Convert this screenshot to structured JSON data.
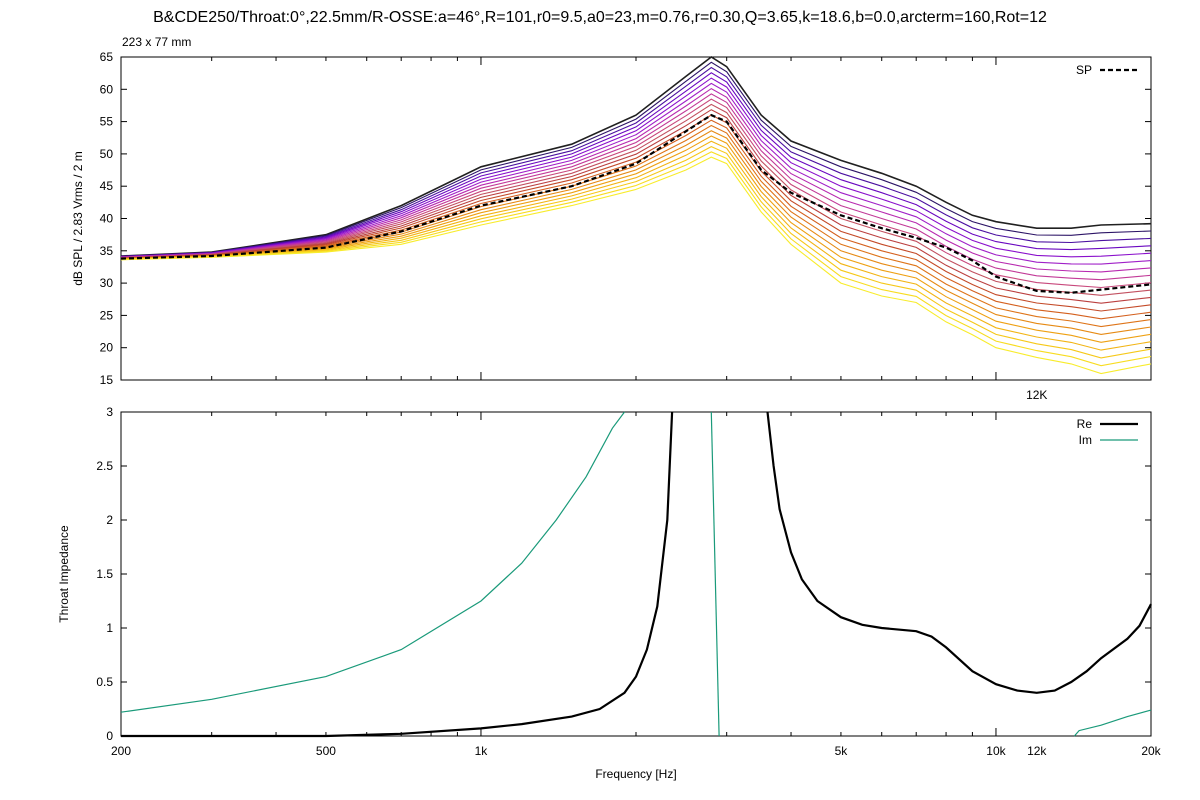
{
  "title": "B&CDE250/Throat:0°,22.5mm/R-OSSE:a=46°,R=101,r0=9.5,a0=23,m=0.76,r=0.30,Q=3.65,k=18.6,b=0.0,arcterm=160,Rot=12",
  "subtitle": "223 x 77 mm",
  "colors": {
    "sp": "#000000",
    "re": "#000000",
    "im": "#1a9a7a",
    "frame": "#000000"
  },
  "chart_data": [
    {
      "type": "line",
      "ylabel": "dB SPL / 2.83 Vrms / 2 m",
      "xscale": "log",
      "xlim": [
        200,
        20000
      ],
      "ylim": [
        15,
        65
      ],
      "yticks": [
        15,
        20,
        25,
        30,
        35,
        40,
        45,
        50,
        55,
        60,
        65
      ],
      "annotation": "12K",
      "legend": {
        "position": "top-right",
        "entries": [
          "SP"
        ]
      },
      "sp_series": {
        "name": "SP",
        "x": [
          200,
          300,
          500,
          700,
          1000,
          1500,
          2000,
          2500,
          2800,
          3000,
          3500,
          4000,
          5000,
          6000,
          7000,
          8000,
          9000,
          10000,
          12000,
          14000,
          16000,
          20000
        ],
        "y": [
          33.8,
          34.2,
          35.5,
          38.0,
          42.0,
          45.0,
          48.5,
          53.5,
          56.0,
          55.0,
          47.5,
          44.0,
          40.5,
          38.5,
          37.0,
          35.5,
          33.5,
          31.0,
          28.8,
          28.5,
          29.0,
          29.8
        ]
      },
      "angle_family": {
        "count": 20,
        "upper": {
          "x": [
            200,
            300,
            500,
            700,
            1000,
            1500,
            2000,
            2500,
            2800,
            3000,
            3500,
            4000,
            5000,
            6000,
            7000,
            8000,
            9000,
            10000,
            12000,
            14000,
            16000,
            20000
          ],
          "y": [
            34.2,
            34.8,
            37.5,
            42.0,
            48.0,
            51.5,
            56.0,
            62.0,
            65.0,
            63.5,
            56.0,
            52.0,
            49.0,
            47.0,
            45.0,
            42.5,
            40.5,
            39.5,
            38.5,
            38.5,
            39.0,
            39.2
          ]
        },
        "lower": {
          "x": [
            200,
            300,
            500,
            700,
            1000,
            1500,
            2000,
            2500,
            2800,
            3000,
            3500,
            4000,
            5000,
            6000,
            7000,
            8000,
            9000,
            10000,
            12000,
            14000,
            16000,
            20000
          ],
          "y": [
            33.6,
            34.0,
            34.8,
            36.0,
            39.0,
            42.0,
            44.5,
            47.5,
            49.5,
            48.5,
            41.0,
            36.0,
            30.0,
            28.0,
            27.0,
            24.0,
            22.0,
            20.0,
            18.5,
            17.5,
            16.0,
            17.5
          ]
        },
        "colors": [
          "#202020",
          "#2c1466",
          "#4b10a0",
          "#6a08c0",
          "#8a10cc",
          "#a020c8",
          "#b82ab0",
          "#c23a98",
          "#c8487c",
          "#c25060",
          "#bb4040",
          "#c44a28",
          "#d4601e",
          "#de7418",
          "#e68a14",
          "#eea012",
          "#f2b414",
          "#f6c818",
          "#f8dc20",
          "#f8ec2c"
        ]
      }
    },
    {
      "type": "line",
      "xlabel": "Frequency [Hz]",
      "ylabel": "Throat Impedance",
      "xscale": "log",
      "xlim": [
        200,
        20000
      ],
      "ylim": [
        0,
        3
      ],
      "yticks": [
        0,
        0.5,
        1,
        1.5,
        2,
        2.5,
        3
      ],
      "ytick_labels": [
        "0",
        "0.5",
        "1",
        "1.5",
        "2",
        "2.5",
        "3"
      ],
      "xtick_labels": [
        "200",
        "500",
        "1k",
        "5k",
        "10k",
        "12k",
        "20k"
      ],
      "xtick_values": [
        200,
        500,
        1000,
        5000,
        10000,
        12000,
        20000
      ],
      "legend": {
        "position": "top-right",
        "entries": [
          "Re",
          "Im"
        ]
      },
      "series": [
        {
          "name": "Re",
          "x": [
            200,
            500,
            700,
            1000,
            1200,
            1500,
            1700,
            1900,
            2000,
            2100,
            2200,
            2300,
            2350,
            3600,
            3700,
            3800,
            4000,
            4200,
            4500,
            5000,
            5500,
            6000,
            7000,
            7500,
            8000,
            9000,
            10000,
            11000,
            12000,
            13000,
            14000,
            15000,
            16000,
            18000,
            19000,
            20000
          ],
          "y": [
            0.0,
            0.0,
            0.02,
            0.07,
            0.11,
            0.18,
            0.25,
            0.4,
            0.55,
            0.8,
            1.2,
            2.0,
            3.0,
            3.0,
            2.5,
            2.1,
            1.7,
            1.45,
            1.25,
            1.1,
            1.03,
            1.0,
            0.97,
            0.92,
            0.82,
            0.6,
            0.48,
            0.42,
            0.4,
            0.42,
            0.5,
            0.6,
            0.72,
            0.9,
            1.02,
            1.22
          ]
        },
        {
          "name": "Im",
          "x": [
            200,
            300,
            500,
            700,
            1000,
            1200,
            1400,
            1600,
            1800,
            1900,
            2000,
            2800,
            2900,
            14200,
            14500,
            16000,
            18000,
            20000
          ],
          "y": [
            0.22,
            0.34,
            0.55,
            0.8,
            1.25,
            1.6,
            2.0,
            2.4,
            2.85,
            3.0,
            3.0,
            3.0,
            0.0,
            0.0,
            0.05,
            0.1,
            0.18,
            0.24
          ]
        }
      ]
    }
  ]
}
